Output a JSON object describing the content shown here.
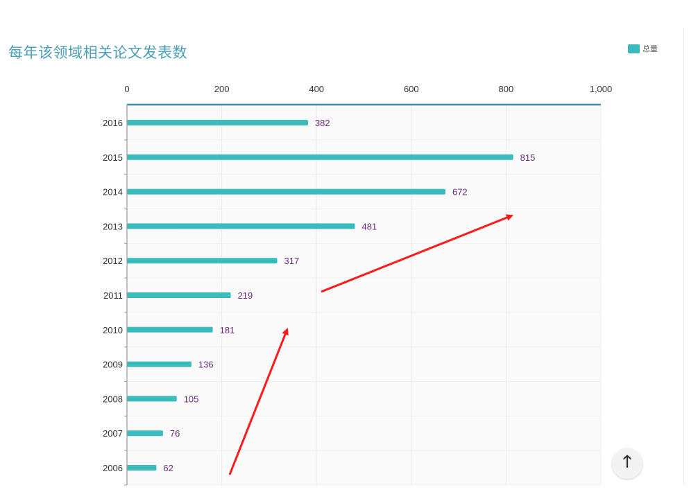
{
  "chart_data": {
    "type": "bar",
    "orientation": "horizontal",
    "title": "每年该领域相关论文发表数",
    "categories": [
      "2016",
      "2015",
      "2014",
      "2013",
      "2012",
      "2011",
      "2010",
      "2009",
      "2008",
      "2007",
      "2006"
    ],
    "series": [
      {
        "name": "总量",
        "color": "#3bbcbc",
        "values": [
          382,
          815,
          672,
          481,
          317,
          219,
          181,
          136,
          105,
          76,
          62
        ]
      }
    ],
    "xlim": [
      0,
      1000
    ],
    "xticks": [
      "0",
      "200",
      "400",
      "600",
      "800",
      "1,000"
    ],
    "xtick_values": [
      0,
      200,
      400,
      600,
      800,
      1000
    ],
    "grid": true,
    "legend_position": "top-right",
    "annotation_color": "#ff1a1a"
  },
  "icons": {
    "scroll_top": "arrow-up-icon"
  },
  "scroll_top_glyph": "🡑"
}
